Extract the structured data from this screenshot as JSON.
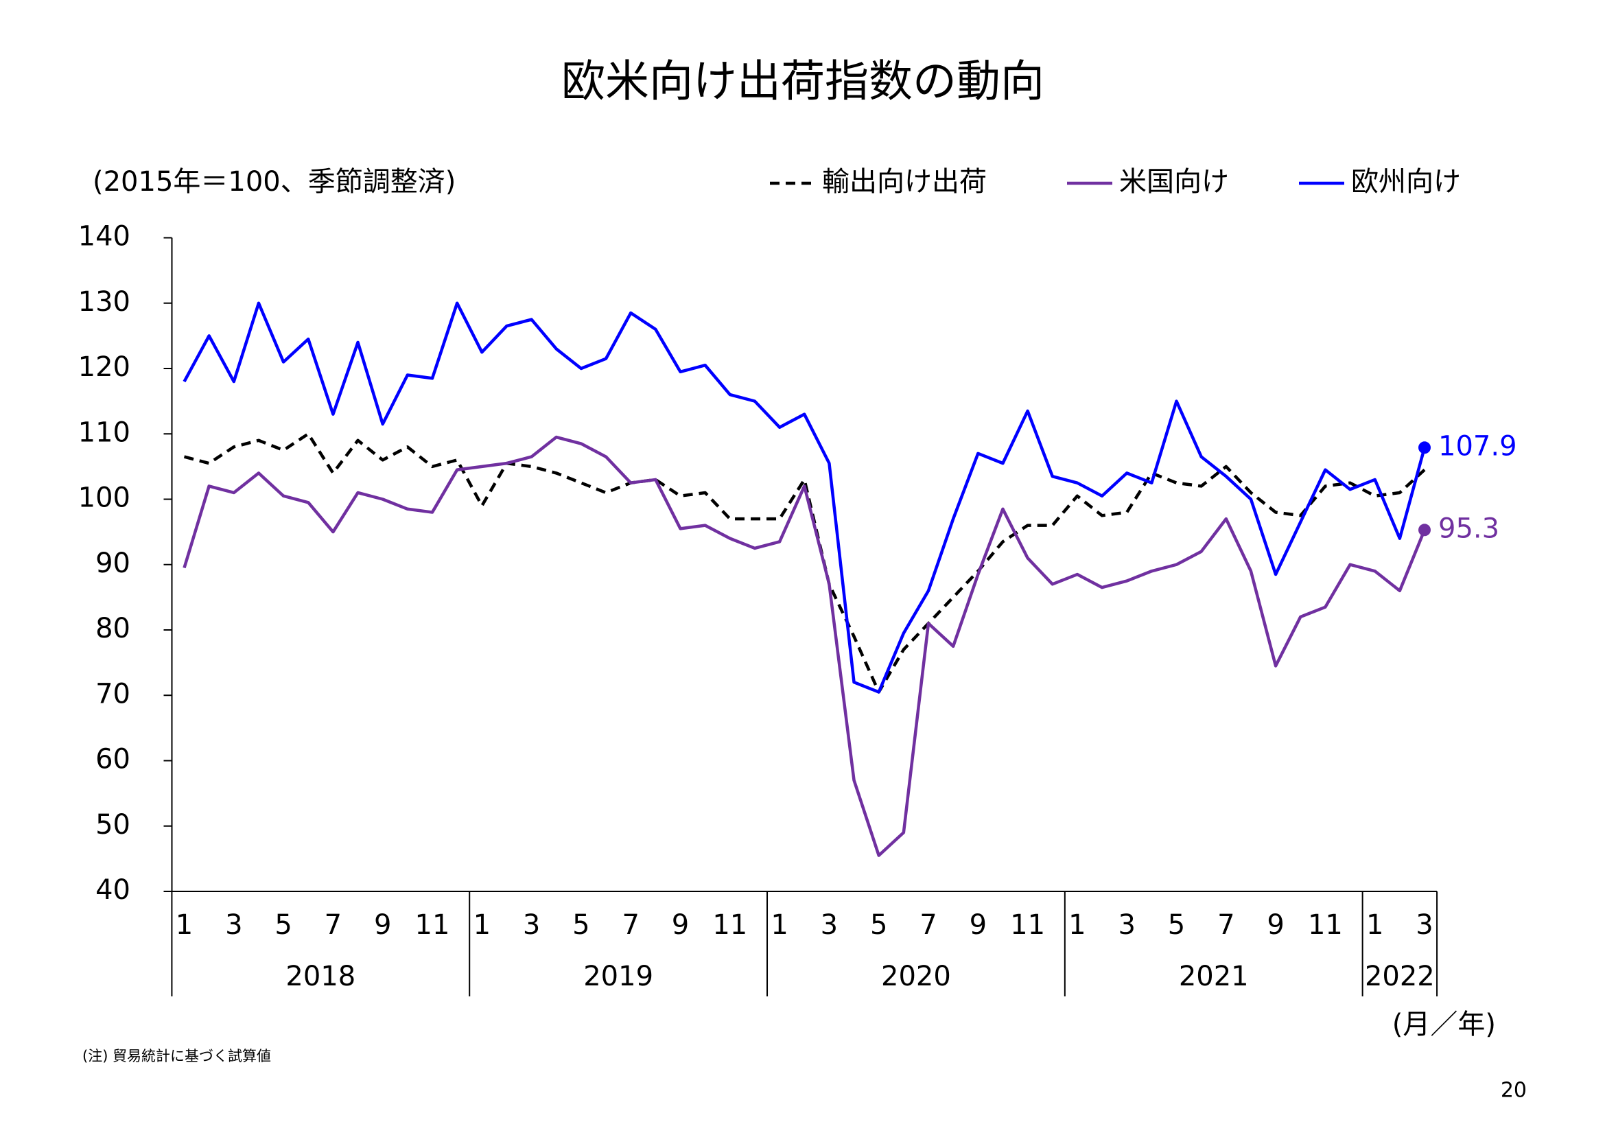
{
  "chart_data": {
    "type": "line",
    "title": "欧米向け出荷指数の動向",
    "y_axis_label": "(2015年＝100、季節調整済)",
    "x_axis_label": "(月／年)",
    "note": "(注) 貿易統計に基づく試算値",
    "page_number": "20",
    "categories": [
      "1",
      null,
      "3",
      null,
      "5",
      null,
      "7",
      null,
      "9",
      null,
      "11",
      null,
      "1",
      null,
      "3",
      null,
      "5",
      null,
      "7",
      null,
      "9",
      null,
      "11",
      null,
      "1",
      null,
      "3",
      null,
      "5",
      null,
      "7",
      null,
      "9",
      null,
      "11",
      null,
      "1",
      null,
      "3",
      null,
      "5",
      null,
      "7",
      null,
      "9",
      null,
      "11",
      null,
      "1",
      null,
      "3"
    ],
    "year_labels": [
      "2018",
      "2019",
      "2020",
      "2021",
      "2022"
    ],
    "ylim": [
      40,
      140
    ],
    "yticks": [
      40,
      50,
      60,
      70,
      80,
      90,
      100,
      110,
      120,
      130,
      140
    ],
    "legend": "top-right",
    "series": [
      {
        "name": "輸出向け出荷",
        "color": "#000000",
        "line_style": "dashed",
        "values": [
          106.5,
          105.5,
          108,
          109,
          107.5,
          110,
          104,
          109,
          106,
          108,
          105,
          106,
          99,
          105.5,
          105,
          104,
          102.5,
          101,
          102.5,
          103,
          100.5,
          101,
          97,
          97,
          97,
          103,
          87,
          79,
          70.5,
          77,
          81,
          85,
          89,
          93.5,
          96,
          96,
          100.5,
          97.5,
          98,
          104,
          102.5,
          102,
          105,
          101,
          98,
          97.5,
          102,
          102.5,
          100.5,
          101,
          104.5
        ]
      },
      {
        "name": "米国向け",
        "color": "#7030a0",
        "line_style": "solid",
        "end_label": true,
        "values": [
          89.5,
          102,
          101,
          104,
          100.5,
          99.5,
          95,
          101,
          100,
          98.5,
          98,
          104.5,
          105,
          105.5,
          106.5,
          109.5,
          108.5,
          106.5,
          102.5,
          103,
          95.5,
          96,
          94,
          92.5,
          93.5,
          102,
          87,
          57,
          45.5,
          49,
          81,
          77.5,
          88.5,
          98.5,
          91,
          87,
          88.5,
          86.5,
          87.5,
          89,
          90,
          92,
          97,
          89,
          74.5,
          82,
          83.5,
          90,
          89,
          86,
          95.3
        ]
      },
      {
        "name": "欧州向け",
        "color": "#0000ff",
        "line_style": "solid",
        "end_label": true,
        "values": [
          118,
          125,
          118,
          130,
          121,
          124.5,
          113,
          124,
          111.5,
          119,
          118.5,
          130,
          122.5,
          126.5,
          127.5,
          123,
          120,
          121.5,
          128.5,
          126,
          119.5,
          120.5,
          116,
          115,
          111,
          113,
          105.5,
          72,
          70.5,
          79.5,
          86,
          97,
          107,
          105.5,
          113.5,
          103.5,
          102.5,
          100.5,
          104,
          102.5,
          115,
          106.5,
          103.5,
          100,
          88.5,
          96.5,
          104.5,
          101.5,
          103,
          94,
          107.9
        ]
      }
    ]
  }
}
